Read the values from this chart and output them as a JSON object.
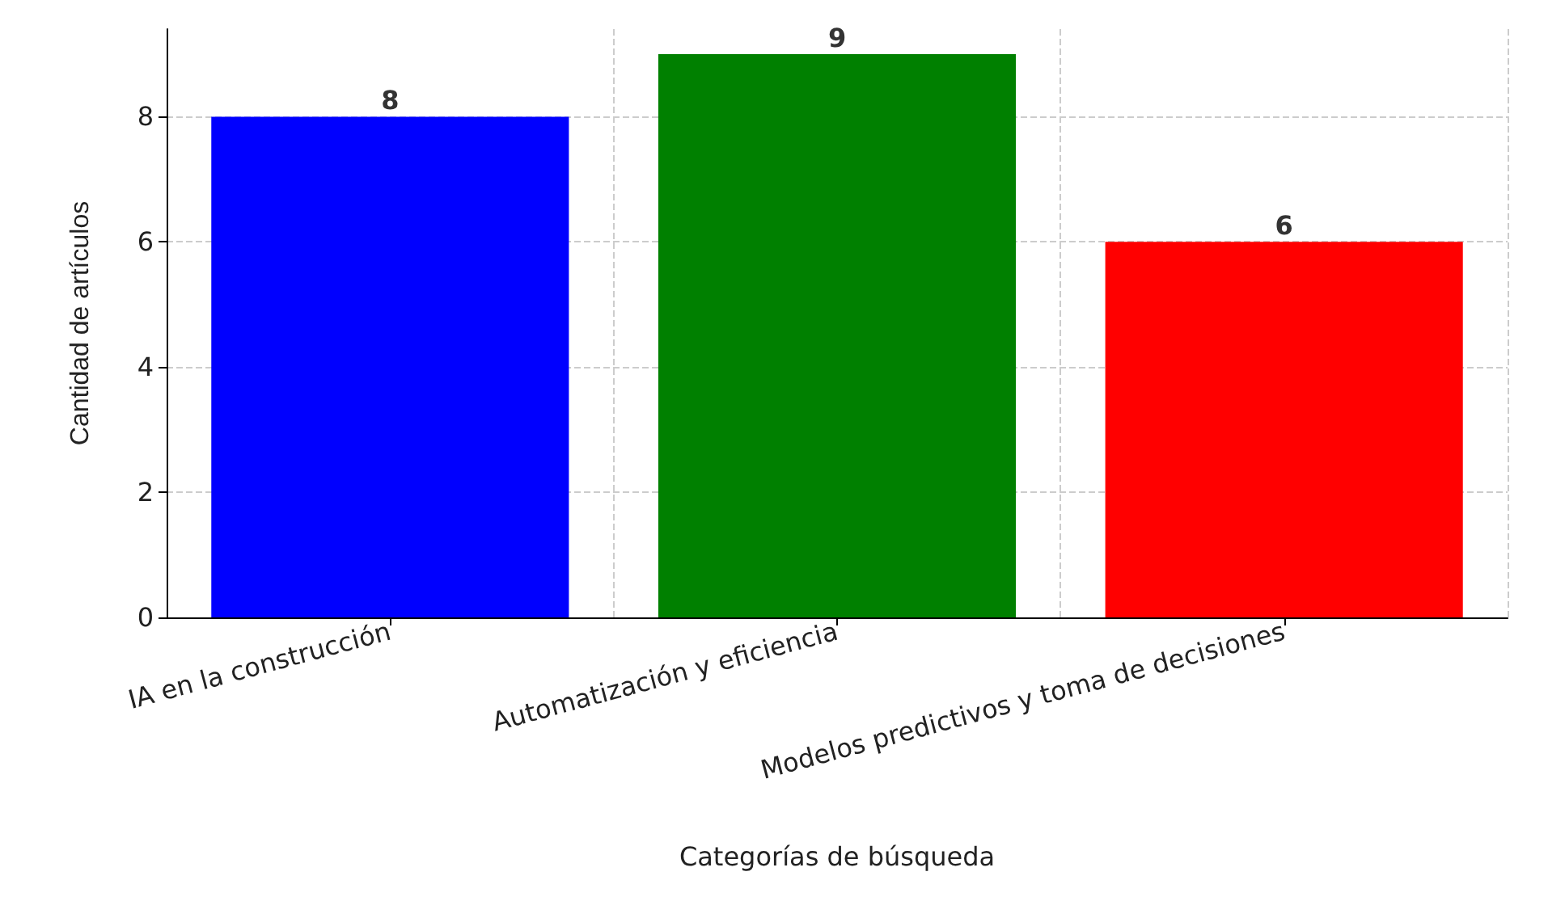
{
  "chart_data": {
    "type": "bar",
    "xlabel": "Categorías de búsqueda",
    "ylabel": "Cantidad de artículos",
    "categories": [
      "IA en la construcción",
      "Automatización y eficiencia",
      "Modelos predictivos y toma de decisiones"
    ],
    "values": [
      8,
      9,
      6
    ],
    "colors": [
      "#0000ff",
      "#008000",
      "#ff0000"
    ],
    "ylim": [
      0,
      9.4
    ],
    "yticks": [
      0,
      2,
      4,
      6,
      8
    ],
    "grid": true,
    "data_labels": true
  }
}
